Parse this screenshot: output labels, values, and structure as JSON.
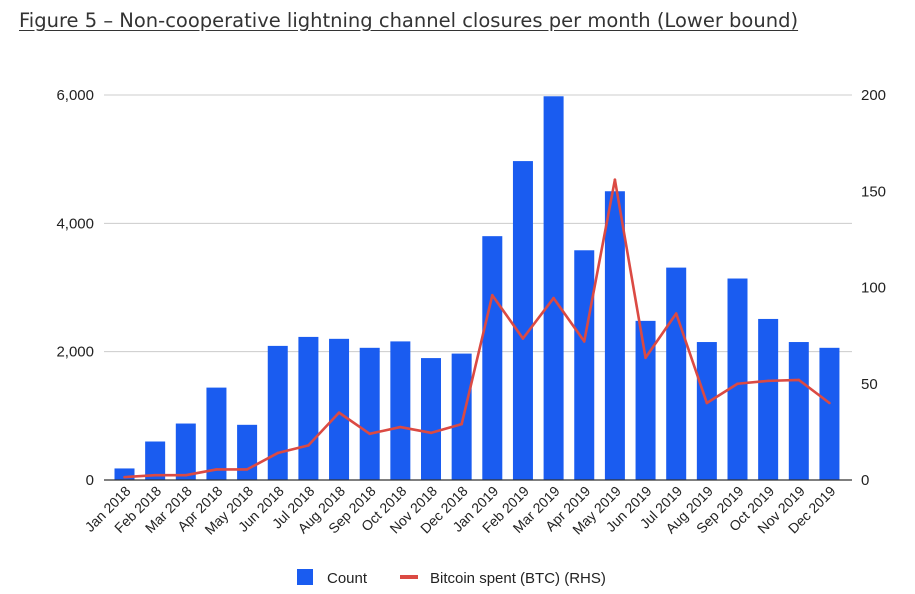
{
  "figure_title": "Figure 5 – Non-cooperative lightning channel closures per month (Lower bound)",
  "chart_data": {
    "type": "bar",
    "categories": [
      "Jan 2018",
      "Feb 2018",
      "Mar 2018",
      "Apr 2018",
      "May 2018",
      "Jun 2018",
      "Jul 2018",
      "Aug 2018",
      "Sep 2018",
      "Oct 2018",
      "Nov 2018",
      "Dec 2018",
      "Jan 2019",
      "Feb 2019",
      "Mar 2019",
      "Apr 2019",
      "May 2019",
      "Jun 2019",
      "Jul 2019",
      "Aug 2019",
      "Sep 2019",
      "Oct 2019",
      "Nov 2019",
      "Dec 2019"
    ],
    "series": [
      {
        "name": "Count",
        "type": "bar",
        "axis": "left",
        "color": "#1a5cf0",
        "values": [
          180,
          600,
          880,
          1440,
          860,
          2090,
          2230,
          2200,
          2060,
          2160,
          1900,
          1970,
          3800,
          4970,
          5980,
          3580,
          4500,
          2480,
          3310,
          2150,
          3140,
          2510,
          2150,
          2060
        ]
      },
      {
        "name": "Bitcoin spent (BTC) (RHS)",
        "type": "line",
        "axis": "right",
        "color": "#db4a43",
        "values": [
          1.5,
          2.5,
          2.5,
          5.5,
          5.5,
          14,
          18,
          35,
          24,
          27.5,
          24.5,
          29,
          96,
          73.5,
          94.5,
          72,
          156,
          63.5,
          86.5,
          40,
          50,
          51.5,
          52,
          40
        ]
      }
    ],
    "yaxis_left": {
      "ticks": [
        "0",
        "2,000",
        "4,000",
        "6,000"
      ],
      "ylim": [
        0,
        6000
      ]
    },
    "yaxis_right": {
      "ticks": [
        "0",
        "50",
        "100",
        "150",
        "200"
      ],
      "ylim": [
        0,
        200
      ]
    },
    "grid": true,
    "legend_position": "bottom"
  }
}
